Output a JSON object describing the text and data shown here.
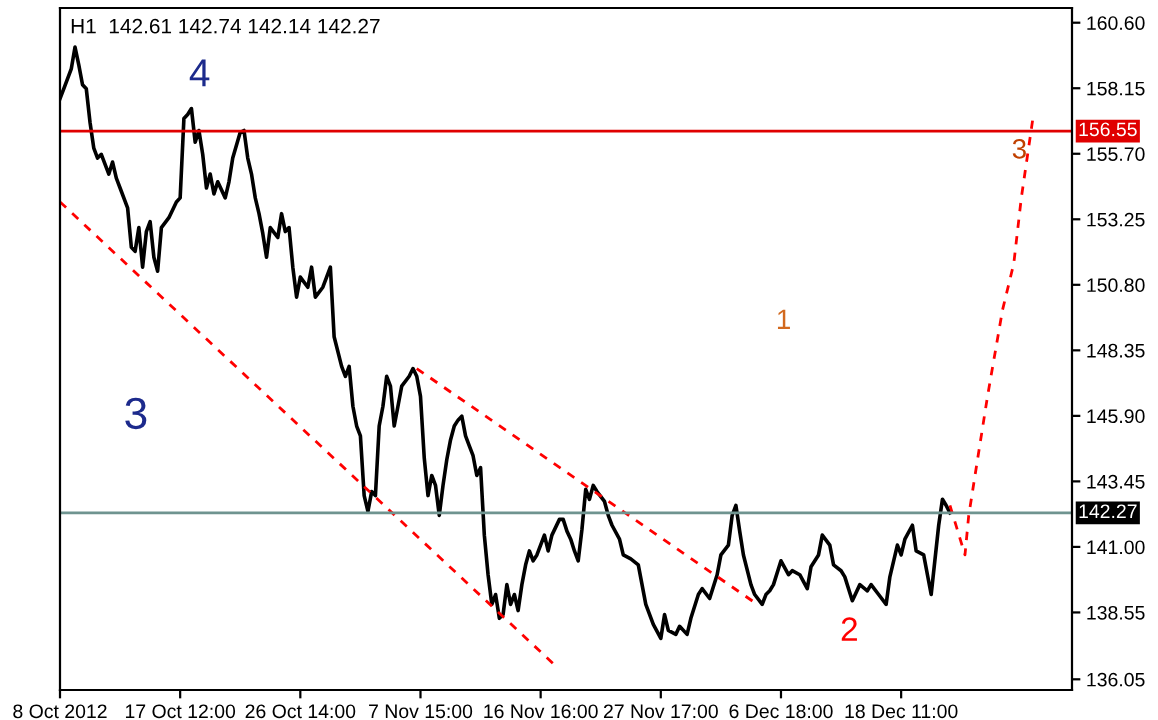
{
  "chart_data": {
    "type": "line",
    "title": "H1  142.61 142.74 142.14 142.27",
    "categories": [
      "8 Oct 2012",
      null,
      null,
      null,
      null,
      null,
      null,
      null,
      null,
      null,
      null,
      null,
      null,
      null,
      null,
      null,
      null,
      null,
      null,
      null,
      null,
      null,
      null,
      null,
      null,
      null,
      null,
      null,
      null,
      null,
      null,
      null,
      "17 Oct 12:00",
      null,
      null,
      null,
      null,
      null,
      null,
      null,
      null,
      null,
      null,
      null,
      null,
      null,
      null,
      null,
      null,
      null,
      null,
      null,
      null,
      null,
      null,
      null,
      null,
      null,
      null,
      null,
      null,
      null,
      null,
      null,
      "26 Oct 14:00",
      null,
      null,
      null,
      null,
      null,
      null,
      null,
      null,
      null,
      null,
      null,
      null,
      null,
      null,
      null,
      null,
      null,
      null,
      null,
      null,
      null,
      null,
      null,
      null,
      null,
      null,
      null,
      null,
      null,
      null,
      null,
      "7 Nov 15:00",
      null,
      null,
      null,
      null,
      null,
      null,
      null,
      null,
      null,
      null,
      null,
      null,
      null,
      null,
      null,
      null,
      null,
      null,
      null,
      null,
      null,
      null,
      null,
      null,
      null,
      null,
      null,
      null,
      null,
      null,
      null,
      "16 Nov 16:00",
      null,
      null,
      null,
      null,
      null,
      null,
      null,
      null,
      null,
      null,
      null,
      null,
      null,
      null,
      null,
      null,
      null,
      null,
      null,
      null,
      null,
      null,
      null,
      null,
      null,
      null,
      null,
      null,
      null,
      null,
      null,
      "27 Nov 17:00",
      null,
      null,
      null,
      null,
      null,
      null,
      null,
      null,
      null,
      null,
      null,
      null,
      null,
      null,
      null,
      null,
      null,
      null,
      null,
      null,
      null,
      null,
      null,
      null,
      null,
      null,
      null,
      null,
      null,
      null,
      null,
      "6 Dec 18:00",
      null,
      null,
      null,
      null,
      null,
      null,
      null,
      null,
      null,
      null,
      null,
      null,
      null,
      null,
      null,
      null,
      null,
      null,
      null,
      null,
      null,
      null,
      null,
      null,
      null,
      null,
      null,
      null,
      null,
      null,
      null,
      "18 Dec 11:00",
      null,
      null,
      null,
      null,
      null,
      null,
      null,
      null,
      null,
      null,
      null,
      null,
      null,
      null,
      null,
      null,
      null,
      null,
      null,
      null,
      null,
      null,
      null,
      null,
      null,
      null,
      null,
      null,
      null,
      null,
      null,
      null,
      null,
      null,
      null,
      null,
      null,
      null,
      null,
      null,
      null,
      null,
      null,
      null,
      null
    ],
    "series": [
      {
        "color": "#000000",
        "values": [
          157.76,
          158.13,
          null,
          158.87,
          159.69,
          159.02,
          158.28,
          158.13,
          156.87,
          155.91,
          155.54,
          155.68,
          null,
          154.94,
          155.39,
          154.79,
          154.42,
          null,
          153.68,
          152.2,
          152.05,
          152.94,
          151.46,
          152.79,
          153.16,
          151.83,
          151.31,
          152.94,
          null,
          153.31,
          null,
          153.9,
          154.05,
          157.02,
          157.17,
          157.39,
          156.13,
          156.57,
          155.68,
          154.42,
          154.94,
          154.2,
          154.65,
          null,
          154.05,
          154.65,
          155.54,
          null,
          156.5,
          156.57,
          155.54,
          154.94,
          154.05,
          153.46,
          152.72,
          151.83,
          152.94,
          null,
          152.57,
          153.46,
          152.79,
          152.94,
          151.46,
          150.34,
          151.09,
          null,
          150.71,
          151.46,
          150.34,
          null,
          150.71,
          151.09,
          151.46,
          148.86,
          null,
          147.75,
          147.38,
          147.75,
          146.26,
          145.52,
          145.15,
          142.92,
          142.33,
          143.07,
          142.92,
          145.52,
          146.26,
          147.38,
          147.01,
          145.52,
          146.26,
          147.01,
          null,
          147.38,
          147.67,
          147.38,
          146.63,
          144.33,
          142.92,
          143.67,
          143.3,
          142.18,
          143.3,
          144.26,
          145.0,
          145.52,
          145.74,
          145.89,
          145.15,
          144.78,
          144.41,
          143.67,
          143.96,
          141.44,
          139.96,
          138.85,
          139.22,
          138.33,
          138.47,
          139.59,
          138.85,
          139.22,
          138.62,
          139.59,
          140.33,
          140.85,
          140.48,
          140.7,
          null,
          141.44,
          140.85,
          141.44,
          null,
          142.03,
          142.03,
          141.59,
          141.29,
          140.85,
          140.48,
          141.66,
          143.15,
          142.78,
          143.3,
          143.07,
          null,
          142.7,
          142.18,
          141.81,
          null,
          141.29,
          140.7,
          null,
          140.55,
          null,
          140.33,
          null,
          138.85,
          null,
          138.1,
          null,
          137.58,
          138.47,
          137.88,
          null,
          137.73,
          138.03,
          null,
          137.73,
          138.33,
          null,
          139.22,
          139.44,
          null,
          139.07,
          null,
          139.96,
          140.7,
          null,
          141.07,
          142.18,
          142.55,
          141.59,
          140.7,
          null,
          139.59,
          139.22,
          null,
          138.85,
          139.22,
          139.36,
          139.59,
          null,
          140.48,
          null,
          139.96,
          140.11,
          null,
          139.96,
          null,
          139.44,
          140.26,
          null,
          140.7,
          141.44,
          null,
          141.07,
          140.33,
          null,
          140.11,
          139.88,
          null,
          138.99,
          null,
          139.59,
          null,
          139.36,
          139.59,
          null,
          139.22,
          null,
          138.85,
          139.88,
          null,
          141.07,
          140.7,
          141.29,
          null,
          141.81,
          140.85,
          null,
          140.7,
          139.96,
          139.22,
          null,
          141.81,
          142.78,
          142.55,
          142.27,
          null,
          null,
          null,
          null,
          null,
          null,
          null,
          null,
          null,
          null,
          null,
          null,
          null,
          null,
          null,
          null,
          null,
          null,
          null,
          null,
          null,
          null,
          null,
          null,
          null,
          null,
          null,
          null,
          null,
          null,
          null,
          null
        ]
      },
      {
        "color": "#ff0000",
        "line_style": "dashed",
        "values": [
          153.9,
          null,
          null,
          null,
          null,
          null,
          null,
          null,
          null,
          null,
          null,
          null,
          null,
          null,
          null,
          null,
          null,
          null,
          null,
          null,
          null,
          null,
          null,
          null,
          null,
          null,
          null,
          null,
          null,
          null,
          null,
          null,
          null,
          null,
          null,
          null,
          null,
          null,
          null,
          null,
          null,
          null,
          null,
          null,
          null,
          null,
          null,
          null,
          null,
          null,
          null,
          null,
          null,
          null,
          null,
          null,
          null,
          null,
          null,
          null,
          null,
          null,
          null,
          null,
          null,
          null,
          null,
          null,
          null,
          null,
          null,
          null,
          null,
          null,
          null,
          null,
          null,
          null,
          null,
          null,
          null,
          null,
          null,
          null,
          null,
          null,
          null,
          null,
          null,
          null,
          null,
          null,
          null,
          null,
          null,
          null,
          null,
          null,
          null,
          null,
          null,
          null,
          null,
          null,
          null,
          null,
          null,
          null,
          null,
          null,
          null,
          null,
          null,
          null,
          null,
          null,
          null,
          null,
          null,
          null,
          null,
          null,
          null,
          null,
          null,
          null,
          null,
          null,
          null,
          null,
          null,
          null,
          136.55,
          null,
          null,
          null,
          null,
          null,
          null,
          null,
          null,
          null,
          null,
          null,
          null,
          null,
          null,
          null,
          null,
          null,
          null,
          null,
          null,
          null,
          null,
          null,
          null,
          null,
          null,
          null,
          null,
          null,
          null,
          null,
          null,
          null,
          null,
          null,
          null,
          null,
          null,
          null,
          null,
          null,
          null,
          null,
          null,
          null,
          null,
          null,
          null,
          null,
          null,
          null,
          null,
          null,
          null,
          null,
          null,
          null,
          null,
          null,
          null,
          null,
          null,
          null,
          null,
          null,
          null,
          null,
          null,
          null,
          null,
          null,
          null,
          null,
          null,
          null,
          null,
          null,
          null,
          null,
          null,
          null,
          null,
          null,
          null,
          null,
          null,
          null,
          null,
          null,
          null,
          null,
          null,
          null,
          null,
          null,
          null,
          null,
          null,
          null,
          null,
          null,
          null,
          null,
          null,
          null,
          null,
          null,
          null,
          null,
          null,
          null,
          null,
          null,
          null,
          null,
          null,
          null,
          null,
          null,
          null,
          null,
          null,
          null,
          null,
          null,
          null,
          null,
          null,
          null,
          null,
          null,
          null,
          null,
          null,
          null,
          null,
          null
        ]
      },
      {
        "color": "#ff0000",
        "line_style": "dashed",
        "values": [
          null,
          null,
          null,
          null,
          null,
          null,
          null,
          null,
          null,
          null,
          null,
          null,
          null,
          null,
          null,
          null,
          null,
          null,
          null,
          null,
          null,
          null,
          null,
          null,
          null,
          null,
          null,
          null,
          null,
          null,
          null,
          null,
          null,
          null,
          null,
          null,
          null,
          null,
          null,
          null,
          null,
          null,
          null,
          null,
          null,
          null,
          null,
          null,
          null,
          null,
          null,
          null,
          null,
          null,
          null,
          null,
          null,
          null,
          null,
          null,
          null,
          null,
          null,
          null,
          null,
          null,
          null,
          null,
          null,
          null,
          null,
          null,
          null,
          null,
          null,
          null,
          null,
          null,
          null,
          null,
          null,
          null,
          null,
          null,
          null,
          null,
          null,
          null,
          null,
          null,
          null,
          null,
          null,
          null,
          null,
          147.67,
          null,
          null,
          null,
          null,
          null,
          null,
          null,
          null,
          null,
          null,
          null,
          null,
          null,
          null,
          null,
          null,
          null,
          null,
          null,
          null,
          null,
          null,
          null,
          null,
          null,
          null,
          null,
          null,
          null,
          null,
          null,
          null,
          null,
          null,
          null,
          null,
          null,
          null,
          null,
          null,
          null,
          null,
          null,
          null,
          null,
          null,
          null,
          null,
          null,
          null,
          null,
          null,
          null,
          null,
          null,
          null,
          null,
          null,
          null,
          null,
          null,
          null,
          null,
          null,
          null,
          null,
          null,
          null,
          null,
          null,
          null,
          null,
          null,
          null,
          null,
          null,
          null,
          null,
          null,
          null,
          null,
          null,
          null,
          null,
          null,
          null,
          null,
          null,
          null,
          138.92,
          null,
          null,
          null,
          null,
          null,
          null,
          null,
          null,
          null,
          null,
          null,
          null,
          null,
          null,
          null,
          null,
          null,
          null,
          null,
          null,
          null,
          null,
          null,
          null,
          null,
          null,
          null,
          null,
          null,
          null,
          null,
          null,
          null,
          null,
          null,
          null,
          null,
          null,
          null,
          null,
          null,
          null,
          null,
          null,
          null,
          null,
          null,
          null,
          null,
          null,
          null,
          null,
          null,
          null,
          null,
          null,
          null,
          null,
          null,
          null,
          null,
          null,
          null,
          null,
          null,
          null,
          null,
          null,
          null,
          null,
          null,
          null,
          null,
          null,
          null,
          null,
          null,
          null,
          null,
          null,
          null,
          null,
          null,
          null
        ]
      },
      {
        "color": "#ff0000",
        "line_style": "dashed",
        "values": [
          null,
          null,
          null,
          null,
          null,
          null,
          null,
          null,
          null,
          null,
          null,
          null,
          null,
          null,
          null,
          null,
          null,
          null,
          null,
          null,
          null,
          null,
          null,
          null,
          null,
          null,
          null,
          null,
          null,
          null,
          null,
          null,
          null,
          null,
          null,
          null,
          null,
          null,
          null,
          null,
          null,
          null,
          null,
          null,
          null,
          null,
          null,
          null,
          null,
          null,
          null,
          null,
          null,
          null,
          null,
          null,
          null,
          null,
          null,
          null,
          null,
          null,
          null,
          null,
          null,
          null,
          null,
          null,
          null,
          null,
          null,
          null,
          null,
          null,
          null,
          null,
          null,
          null,
          null,
          null,
          null,
          null,
          null,
          null,
          null,
          null,
          null,
          null,
          null,
          null,
          null,
          null,
          null,
          null,
          null,
          null,
          null,
          null,
          null,
          null,
          null,
          null,
          null,
          null,
          null,
          null,
          null,
          null,
          null,
          null,
          null,
          null,
          null,
          null,
          null,
          null,
          null,
          null,
          null,
          null,
          null,
          null,
          null,
          null,
          null,
          null,
          null,
          null,
          null,
          null,
          null,
          null,
          null,
          null,
          null,
          null,
          null,
          null,
          null,
          null,
          null,
          null,
          null,
          null,
          null,
          null,
          null,
          null,
          null,
          null,
          null,
          null,
          null,
          null,
          null,
          null,
          null,
          null,
          null,
          null,
          null,
          null,
          null,
          null,
          null,
          null,
          null,
          null,
          null,
          null,
          null,
          null,
          null,
          null,
          null,
          null,
          null,
          null,
          null,
          null,
          null,
          null,
          null,
          null,
          null,
          null,
          null,
          null,
          null,
          null,
          null,
          null,
          null,
          null,
          null,
          null,
          null,
          null,
          null,
          null,
          null,
          null,
          null,
          null,
          null,
          null,
          null,
          null,
          null,
          null,
          null,
          null,
          null,
          null,
          null,
          null,
          null,
          null,
          null,
          null,
          null,
          null,
          null,
          null,
          null,
          null,
          null,
          null,
          null,
          null,
          null,
          null,
          null,
          null,
          null,
          null,
          null,
          142.55,
          null,
          null,
          null,
          140.7,
          142.18,
          null,
          null,
          null,
          null,
          146.63,
          null,
          null,
          null,
          149.86,
          null,
          null,
          151.6,
          null,
          154.05,
          null,
          null,
          156.94,
          null,
          null,
          null,
          null,
          null,
          null,
          null,
          null,
          null,
          null
        ]
      }
    ],
    "ylim": [
      135.65,
      161.15
    ],
    "yticks": [
      {
        "value": 136.05,
        "label": "136.05"
      },
      {
        "value": 138.55,
        "label": "138.55"
      },
      {
        "value": 141.0,
        "label": "141.00"
      },
      {
        "value": 143.45,
        "label": "143.45"
      },
      {
        "value": 145.9,
        "label": "145.90"
      },
      {
        "value": 148.35,
        "label": "148.35"
      },
      {
        "value": 150.8,
        "label": "150.80"
      },
      {
        "value": 153.25,
        "label": "153.25"
      },
      {
        "value": 155.7,
        "label": "155.70"
      },
      {
        "value": 158.15,
        "label": "158.15"
      },
      {
        "value": 160.6,
        "label": "160.60"
      }
    ],
    "ref_lines": [
      {
        "axis": "y",
        "value": 156.55,
        "label": "156.55",
        "color": "#e00000"
      },
      {
        "axis": "y",
        "value": 142.27,
        "label": "142.27",
        "color": "#6f9490"
      }
    ],
    "annotations": [
      "4",
      "3",
      "1",
      "2",
      "3"
    ],
    "grid": false,
    "legend": false
  }
}
